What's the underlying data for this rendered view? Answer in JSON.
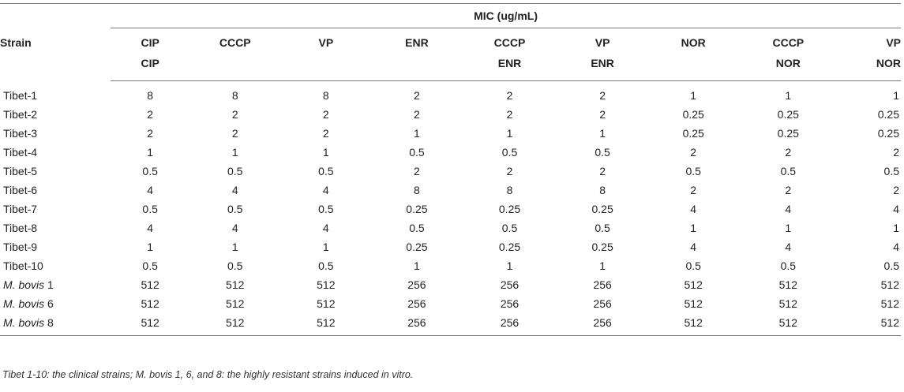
{
  "table": {
    "strain_header": "Strain",
    "group_header": "MIC (ug/mL)",
    "columns": [
      {
        "line1": "CIP",
        "line2": "CIP"
      },
      {
        "line1": "CCCP",
        "line2": ""
      },
      {
        "line1": "VP",
        "line2": ""
      },
      {
        "line1": "ENR",
        "line2": ""
      },
      {
        "line1": "CCCP",
        "line2": "ENR"
      },
      {
        "line1": "VP",
        "line2": "ENR"
      },
      {
        "line1": "NOR",
        "line2": ""
      },
      {
        "line1": "CCCP",
        "line2": "NOR"
      },
      {
        "line1": "VP",
        "line2": "NOR"
      }
    ],
    "rows": [
      {
        "strain": "Tibet-1",
        "italic": "",
        "suffix": "",
        "values": [
          "8",
          "8",
          "8",
          "2",
          "2",
          "2",
          "1",
          "1",
          "1"
        ]
      },
      {
        "strain": "Tibet-2",
        "italic": "",
        "suffix": "",
        "values": [
          "2",
          "2",
          "2",
          "2",
          "2",
          "2",
          "0.25",
          "0.25",
          "0.25"
        ]
      },
      {
        "strain": "Tibet-3",
        "italic": "",
        "suffix": "",
        "values": [
          "2",
          "2",
          "2",
          "1",
          "1",
          "1",
          "0.25",
          "0.25",
          "0.25"
        ]
      },
      {
        "strain": "Tibet-4",
        "italic": "",
        "suffix": "",
        "values": [
          "1",
          "1",
          "1",
          "0.5",
          "0.5",
          "0.5",
          "2",
          "2",
          "2"
        ]
      },
      {
        "strain": "Tibet-5",
        "italic": "",
        "suffix": "",
        "values": [
          "0.5",
          "0.5",
          "0.5",
          "2",
          "2",
          "2",
          "0.5",
          "0.5",
          "0.5"
        ]
      },
      {
        "strain": "Tibet-6",
        "italic": "",
        "suffix": "",
        "values": [
          "4",
          "4",
          "4",
          "8",
          "8",
          "8",
          "2",
          "2",
          "2"
        ]
      },
      {
        "strain": "Tibet-7",
        "italic": "",
        "suffix": "",
        "values": [
          "0.5",
          "0.5",
          "0.5",
          "0.25",
          "0.25",
          "0.25",
          "4",
          "4",
          "4"
        ]
      },
      {
        "strain": "Tibet-8",
        "italic": "",
        "suffix": "",
        "values": [
          "4",
          "4",
          "4",
          "0.5",
          "0.5",
          "0.5",
          "1",
          "1",
          "1"
        ]
      },
      {
        "strain": "Tibet-9",
        "italic": "",
        "suffix": "",
        "values": [
          "1",
          "1",
          "1",
          "0.25",
          "0.25",
          "0.25",
          "4",
          "4",
          "4"
        ]
      },
      {
        "strain": "Tibet-10",
        "italic": "",
        "suffix": "",
        "values": [
          "0.5",
          "0.5",
          "0.5",
          "1",
          "1",
          "1",
          "0.5",
          "0.5",
          "0.5"
        ]
      },
      {
        "strain": "",
        "italic": "M. bovis",
        "suffix": " 1",
        "values": [
          "512",
          "512",
          "512",
          "256",
          "256",
          "256",
          "512",
          "512",
          "512"
        ]
      },
      {
        "strain": "",
        "italic": "M. bovis",
        "suffix": " 6",
        "values": [
          "512",
          "512",
          "512",
          "256",
          "256",
          "256",
          "512",
          "512",
          "512"
        ]
      },
      {
        "strain": "",
        "italic": "M. bovis",
        "suffix": " 8",
        "values": [
          "512",
          "512",
          "512",
          "256",
          "256",
          "256",
          "512",
          "512",
          "512"
        ]
      }
    ]
  },
  "footnote": "Tibet 1-10: the clinical strains; M. bovis 1, 6, and 8: the highly resistant strains induced in vitro."
}
